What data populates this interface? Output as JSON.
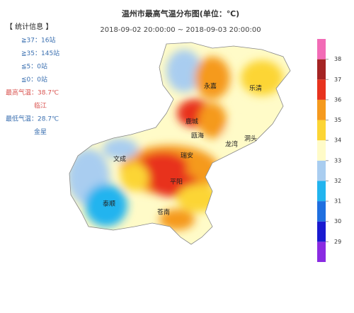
{
  "title": "温州市最高气温分布图(单位：℃)",
  "subtitle": "2018-09-02 20:00:00 ~ 2018-09-03 20:00:00",
  "stats": {
    "heading": "【 统计信息 】",
    "rows": [
      "≧37：16站",
      "≧35：145站",
      "≦5：0站",
      "≦0：0站",
      "最高气温：38.7℃",
      "临江",
      "最低气温：28.7℃",
      "金星"
    ]
  },
  "places": [
    "永嘉",
    "乐清",
    "鹿城",
    "瓯海",
    "龙湾",
    "洞头",
    "文成",
    "瑞安",
    "平阳",
    "泰顺",
    "苍南"
  ],
  "legend": {
    "colors": [
      "#8a2be2",
      "#1a1ad0",
      "#1f6fe0",
      "#22b4ef",
      "#a9cdf0",
      "#fffbc8",
      "#fcd535",
      "#f59a1e",
      "#e8331e",
      "#a52424",
      "#f26bb6"
    ],
    "ticks": [
      29,
      30,
      31,
      32,
      33,
      34,
      35,
      36,
      37,
      38
    ]
  }
}
